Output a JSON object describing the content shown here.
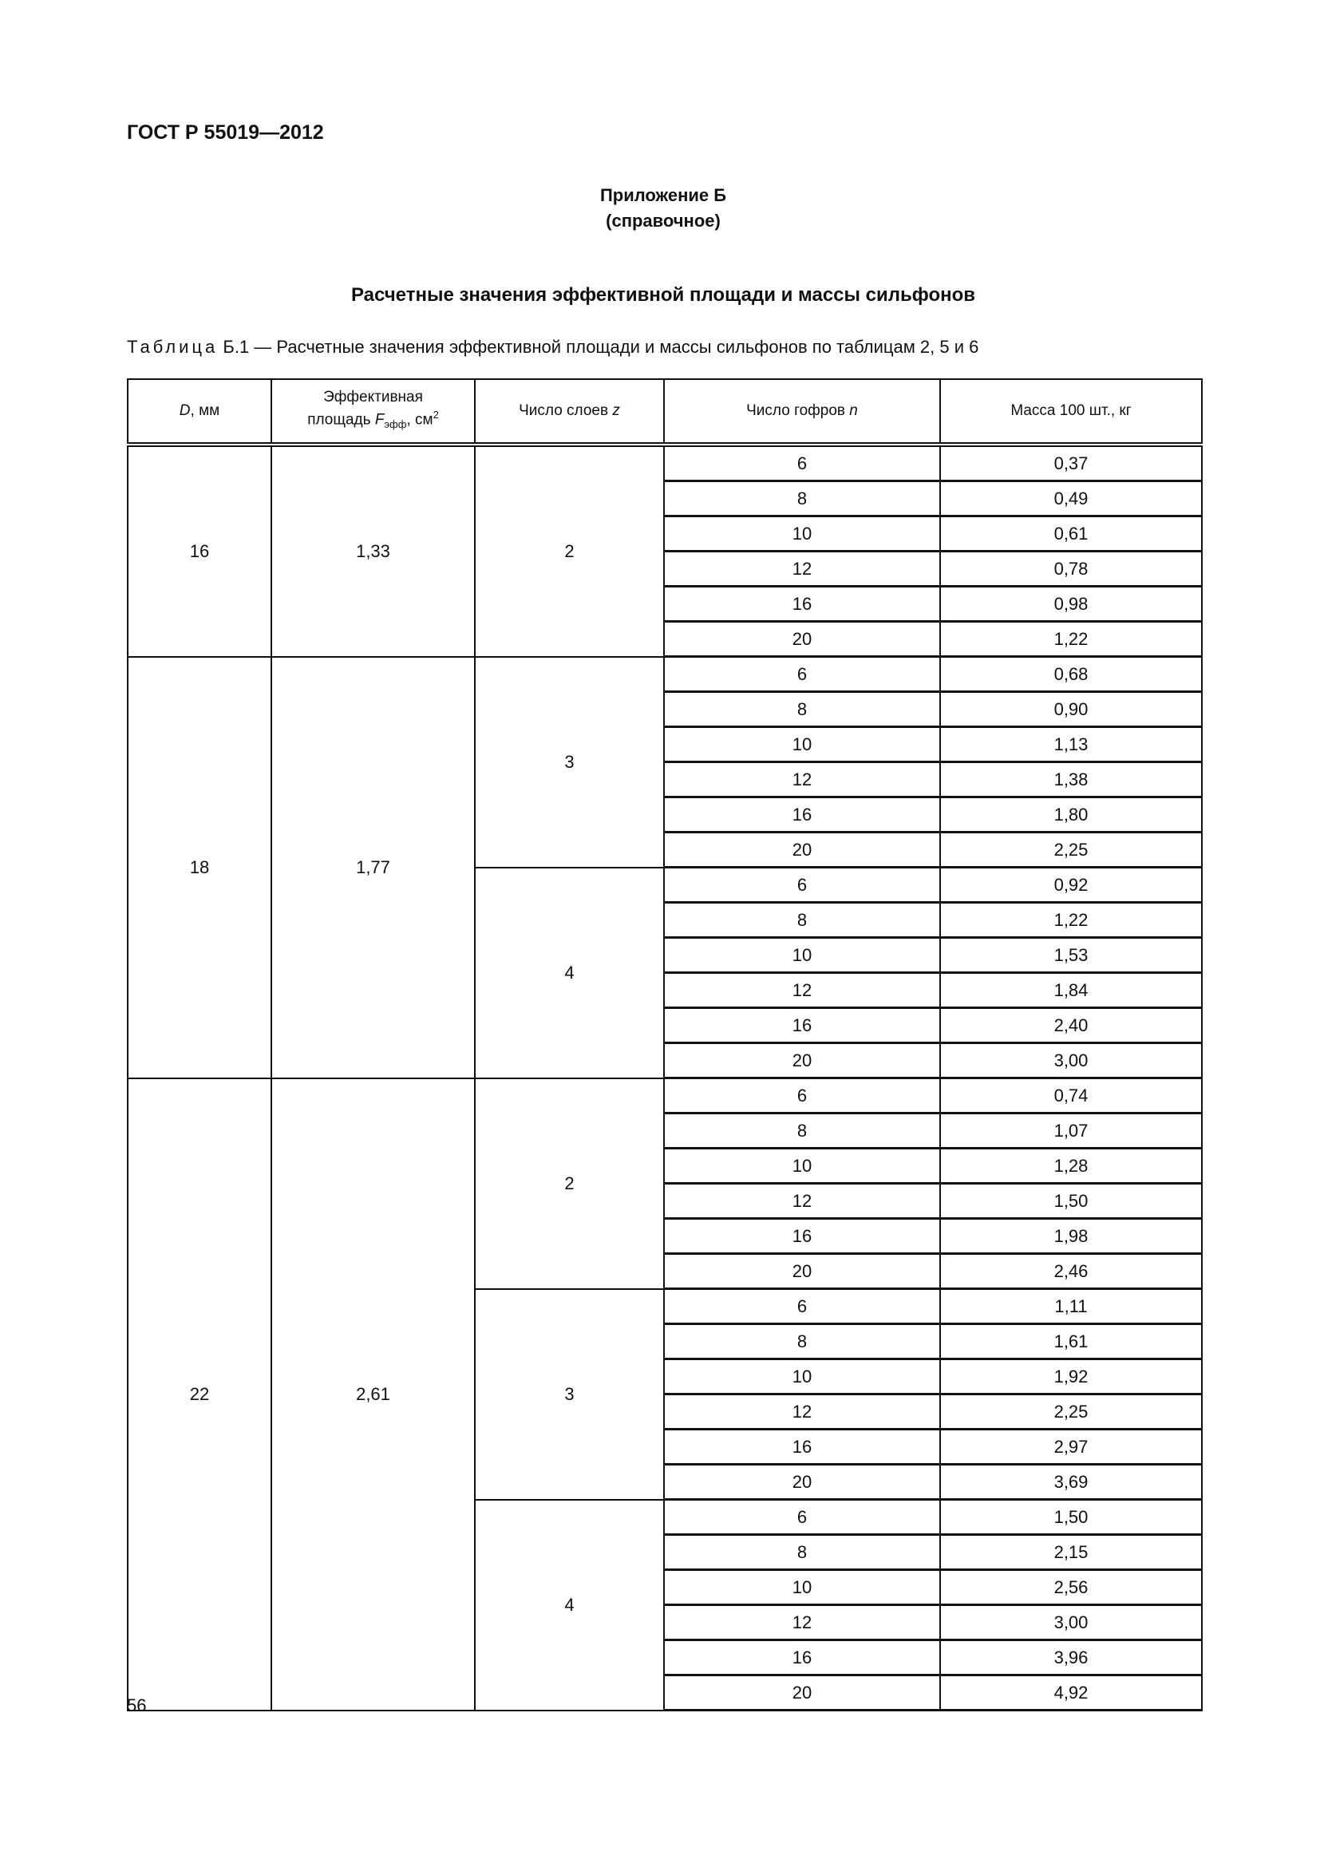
{
  "document": {
    "code": "ГОСТ Р 55019—2012",
    "annex_title": "Приложение Б",
    "annex_type": "(справочное)",
    "heading": "Расчетные значения эффективной площади и массы сильфонов",
    "caption_label": "Таблица",
    "caption_number": " Б.1 — ",
    "caption_text": "Расчетные значения эффективной площади и массы сильфонов по таблицам 2, 5 и 6",
    "page_number": "56"
  },
  "table": {
    "headers": {
      "d_sym": "D",
      "d_unit": ", мм",
      "area_line1": "Эффективная",
      "area_line2": "площадь ",
      "area_sym": "F",
      "area_sub": "эфф",
      "area_unit": ", см",
      "area_sup": "2",
      "layers": "Число слоев ",
      "layers_sym": "z",
      "corr": "Число гофров ",
      "corr_sym": "n",
      "mass": "Масса 100 шт., кг"
    },
    "groups": [
      {
        "D": "16",
        "area": "1,33",
        "layers": [
          {
            "z": "2",
            "rows": [
              [
                "6",
                "0,37"
              ],
              [
                "8",
                "0,49"
              ],
              [
                "10",
                "0,61"
              ],
              [
                "12",
                "0,78"
              ],
              [
                "16",
                "0,98"
              ],
              [
                "20",
                "1,22"
              ]
            ]
          }
        ]
      },
      {
        "D": "18",
        "area": "1,77",
        "layers": [
          {
            "z": "3",
            "rows": [
              [
                "6",
                "0,68"
              ],
              [
                "8",
                "0,90"
              ],
              [
                "10",
                "1,13"
              ],
              [
                "12",
                "1,38"
              ],
              [
                "16",
                "1,80"
              ],
              [
                "20",
                "2,25"
              ]
            ]
          },
          {
            "z": "4",
            "rows": [
              [
                "6",
                "0,92"
              ],
              [
                "8",
                "1,22"
              ],
              [
                "10",
                "1,53"
              ],
              [
                "12",
                "1,84"
              ],
              [
                "16",
                "2,40"
              ],
              [
                "20",
                "3,00"
              ]
            ]
          }
        ]
      },
      {
        "D": "22",
        "area": "2,61",
        "layers": [
          {
            "z": "2",
            "rows": [
              [
                "6",
                "0,74"
              ],
              [
                "8",
                "1,07"
              ],
              [
                "10",
                "1,28"
              ],
              [
                "12",
                "1,50"
              ],
              [
                "16",
                "1,98"
              ],
              [
                "20",
                "2,46"
              ]
            ]
          },
          {
            "z": "3",
            "rows": [
              [
                "6",
                "1,11"
              ],
              [
                "8",
                "1,61"
              ],
              [
                "10",
                "1,92"
              ],
              [
                "12",
                "2,25"
              ],
              [
                "16",
                "2,97"
              ],
              [
                "20",
                "3,69"
              ]
            ]
          },
          {
            "z": "4",
            "rows": [
              [
                "6",
                "1,50"
              ],
              [
                "8",
                "2,15"
              ],
              [
                "10",
                "2,56"
              ],
              [
                "12",
                "3,00"
              ],
              [
                "16",
                "3,96"
              ],
              [
                "20",
                "4,92"
              ]
            ]
          }
        ]
      }
    ]
  }
}
